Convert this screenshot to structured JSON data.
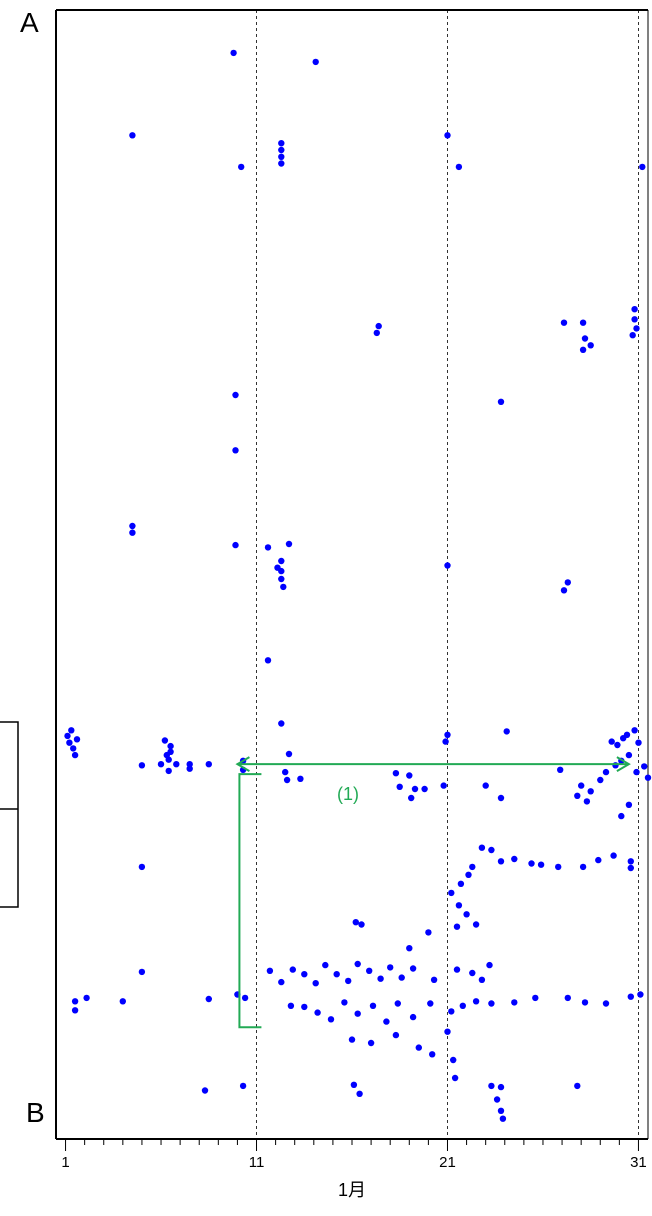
{
  "chart_data": {
    "type": "scatter",
    "top_label": "A",
    "bottom_label": "B",
    "xlabel": "1月",
    "xlim": [
      0.5,
      31.5
    ],
    "ylim": [
      0,
      1
    ],
    "x_ticks": [
      1,
      11,
      21,
      31
    ],
    "x_tick_labels": [
      "1",
      "11",
      "21",
      "31"
    ],
    "vertical_reference_lines": [
      11,
      21,
      31
    ],
    "grid": false,
    "legend": "none",
    "annotation": {
      "label": "(1)",
      "x_start": 10,
      "x_end": 30.5,
      "y": 0.332,
      "bracket_x": 10,
      "bracket_y_top": 0.332,
      "bracket_y_bottom": 0.099
    },
    "colors": {
      "points": "#0000ff",
      "annotation": "#22aa55",
      "axis": "#000000"
    },
    "series": [
      {
        "values": [
          [
            9.8,
            0.962
          ],
          [
            14.1,
            0.954
          ],
          [
            4.5,
            0.889
          ],
          [
            12.3,
            0.882
          ],
          [
            12.3,
            0.876
          ],
          [
            12.3,
            0.87
          ],
          [
            12.3,
            0.864
          ],
          [
            10.2,
            0.861
          ],
          [
            21.0,
            0.889
          ],
          [
            21.6,
            0.861
          ],
          [
            31.2,
            0.861
          ],
          [
            17.4,
            0.72
          ],
          [
            17.3,
            0.714
          ],
          [
            27.1,
            0.723
          ],
          [
            28.1,
            0.723
          ],
          [
            28.2,
            0.709
          ],
          [
            28.5,
            0.703
          ],
          [
            28.1,
            0.699
          ],
          [
            30.8,
            0.735
          ],
          [
            30.8,
            0.726
          ],
          [
            30.9,
            0.718
          ],
          [
            30.7,
            0.712
          ],
          [
            23.8,
            0.653
          ],
          [
            9.9,
            0.659
          ],
          [
            9.9,
            0.61
          ],
          [
            4.5,
            0.543
          ],
          [
            4.5,
            0.537
          ],
          [
            9.9,
            0.526
          ],
          [
            12.7,
            0.527
          ],
          [
            12.3,
            0.512
          ],
          [
            12.3,
            0.503
          ],
          [
            12.3,
            0.496
          ],
          [
            12.4,
            0.489
          ],
          [
            12.1,
            0.506
          ],
          [
            11.6,
            0.524
          ],
          [
            11.6,
            0.424
          ],
          [
            21.0,
            0.508
          ],
          [
            27.3,
            0.493
          ],
          [
            27.1,
            0.486
          ],
          [
            12.3,
            0.368
          ],
          [
            12.7,
            0.341
          ],
          [
            12.5,
            0.325
          ],
          [
            24.1,
            0.361
          ],
          [
            26.9,
            0.327
          ],
          [
            30.8,
            0.362
          ],
          [
            1.1,
            0.357
          ],
          [
            1.2,
            0.351
          ],
          [
            1.4,
            0.346
          ],
          [
            1.5,
            0.34
          ],
          [
            1.6,
            0.354
          ],
          [
            1.3,
            0.362
          ],
          [
            6.5,
            0.348
          ],
          [
            6.4,
            0.336
          ],
          [
            6.8,
            0.332
          ],
          [
            6.4,
            0.326
          ],
          [
            6.0,
            0.332
          ],
          [
            6.3,
            0.34
          ],
          [
            6.5,
            0.343
          ],
          [
            6.2,
            0.353
          ],
          [
            7.5,
            0.328
          ],
          [
            7.5,
            0.332
          ],
          [
            8.5,
            0.332
          ],
          [
            10.3,
            0.327
          ],
          [
            10.3,
            0.335
          ],
          [
            18.5,
            0.312
          ],
          [
            18.3,
            0.324
          ],
          [
            19.0,
            0.322
          ],
          [
            19.3,
            0.31
          ],
          [
            19.1,
            0.302
          ],
          [
            19.8,
            0.31
          ],
          [
            20.8,
            0.313
          ],
          [
            23.0,
            0.313
          ],
          [
            23.8,
            0.302
          ],
          [
            21.0,
            0.358
          ],
          [
            20.9,
            0.352
          ],
          [
            5.0,
            0.331
          ],
          [
            12.6,
            0.318
          ],
          [
            13.3,
            0.319
          ],
          [
            28.0,
            0.313
          ],
          [
            28.5,
            0.308
          ],
          [
            29.0,
            0.318
          ],
          [
            29.3,
            0.325
          ],
          [
            29.8,
            0.331
          ],
          [
            30.1,
            0.335
          ],
          [
            30.5,
            0.34
          ],
          [
            30.9,
            0.325
          ],
          [
            31.3,
            0.33
          ],
          [
            31.5,
            0.32
          ],
          [
            30.2,
            0.355
          ],
          [
            29.9,
            0.349
          ],
          [
            29.6,
            0.352
          ],
          [
            31.0,
            0.351
          ],
          [
            30.4,
            0.358
          ],
          [
            28.3,
            0.299
          ],
          [
            27.8,
            0.304
          ],
          [
            30.5,
            0.296
          ],
          [
            30.1,
            0.286
          ],
          [
            5.0,
            0.241
          ],
          [
            22.3,
            0.241
          ],
          [
            22.8,
            0.258
          ],
          [
            23.3,
            0.256
          ],
          [
            23.8,
            0.246
          ],
          [
            24.5,
            0.248
          ],
          [
            25.4,
            0.244
          ],
          [
            25.9,
            0.243
          ],
          [
            26.8,
            0.241
          ],
          [
            28.1,
            0.241
          ],
          [
            28.9,
            0.247
          ],
          [
            29.7,
            0.251
          ],
          [
            30.6,
            0.246
          ],
          [
            30.6,
            0.24
          ],
          [
            21.2,
            0.218
          ],
          [
            21.7,
            0.226
          ],
          [
            22.1,
            0.234
          ],
          [
            21.6,
            0.207
          ],
          [
            22.0,
            0.199
          ],
          [
            22.5,
            0.19
          ],
          [
            21.5,
            0.188
          ],
          [
            5.0,
            0.148
          ],
          [
            16.2,
            0.192
          ],
          [
            16.5,
            0.19
          ],
          [
            19.0,
            0.169
          ],
          [
            20.0,
            0.183
          ],
          [
            1.5,
            0.122
          ],
          [
            1.5,
            0.114
          ],
          [
            2.1,
            0.125
          ],
          [
            4.0,
            0.122
          ],
          [
            8.5,
            0.124
          ],
          [
            10.0,
            0.128
          ],
          [
            10.4,
            0.125
          ],
          [
            11.7,
            0.149
          ],
          [
            12.3,
            0.139
          ],
          [
            12.9,
            0.15
          ],
          [
            13.5,
            0.146
          ],
          [
            14.1,
            0.138
          ],
          [
            14.6,
            0.154
          ],
          [
            15.2,
            0.146
          ],
          [
            15.8,
            0.14
          ],
          [
            16.3,
            0.155
          ],
          [
            16.9,
            0.149
          ],
          [
            17.5,
            0.142
          ],
          [
            18.0,
            0.152
          ],
          [
            18.6,
            0.143
          ],
          [
            19.2,
            0.151
          ],
          [
            20.3,
            0.141
          ],
          [
            21.5,
            0.15
          ],
          [
            22.3,
            0.147
          ],
          [
            22.8,
            0.141
          ],
          [
            23.2,
            0.154
          ],
          [
            12.8,
            0.118
          ],
          [
            13.5,
            0.117
          ],
          [
            14.2,
            0.112
          ],
          [
            14.9,
            0.106
          ],
          [
            15.6,
            0.121
          ],
          [
            16.3,
            0.111
          ],
          [
            17.1,
            0.118
          ],
          [
            17.8,
            0.104
          ],
          [
            18.4,
            0.12
          ],
          [
            19.2,
            0.108
          ],
          [
            20.1,
            0.12
          ],
          [
            21.2,
            0.113
          ],
          [
            21.8,
            0.118
          ],
          [
            22.5,
            0.122
          ],
          [
            23.3,
            0.12
          ],
          [
            24.5,
            0.121
          ],
          [
            25.6,
            0.125
          ],
          [
            27.3,
            0.125
          ],
          [
            28.2,
            0.121
          ],
          [
            29.3,
            0.12
          ],
          [
            30.6,
            0.126
          ],
          [
            31.1,
            0.128
          ],
          [
            16.0,
            0.088
          ],
          [
            17.0,
            0.085
          ],
          [
            18.3,
            0.092
          ],
          [
            19.5,
            0.081
          ],
          [
            20.2,
            0.075
          ],
          [
            21.0,
            0.095
          ],
          [
            21.3,
            0.07
          ],
          [
            21.4,
            0.054
          ],
          [
            8.3,
            0.043
          ],
          [
            10.3,
            0.047
          ],
          [
            16.1,
            0.048
          ],
          [
            16.4,
            0.04
          ],
          [
            23.3,
            0.047
          ],
          [
            23.8,
            0.046
          ],
          [
            23.6,
            0.035
          ],
          [
            23.8,
            0.025
          ],
          [
            23.9,
            0.018
          ],
          [
            27.8,
            0.047
          ]
        ]
      }
    ]
  }
}
